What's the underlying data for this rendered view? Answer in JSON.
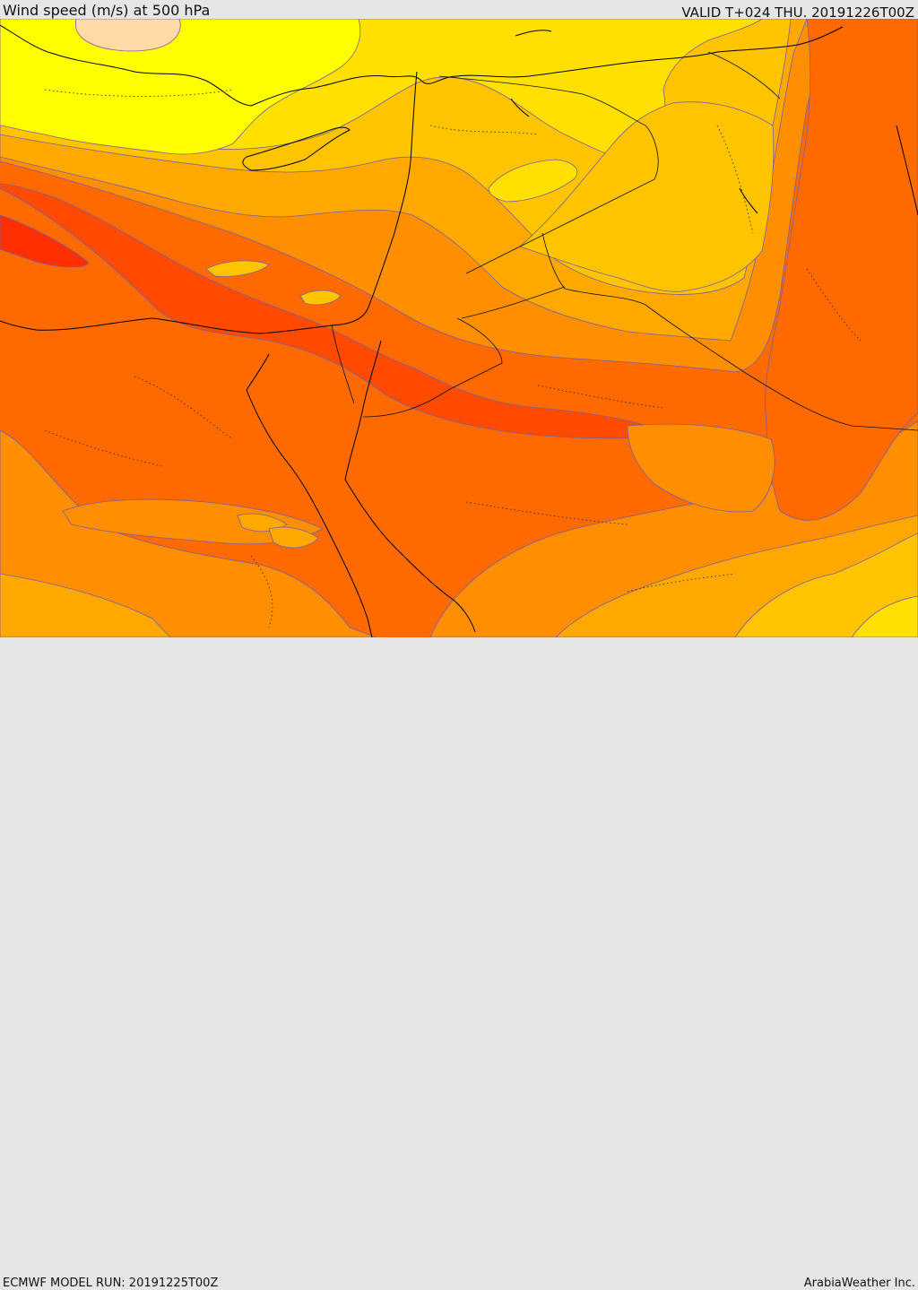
{
  "header": {
    "title": "Wind speed (m/s) at 500 hPa",
    "valid_time": "VALID T+024 THU. 20191226T00Z"
  },
  "footer": {
    "model_run": "ECMWF MODEL RUN: 20191225T00Z",
    "credit": "ArabiaWeather Inc."
  },
  "palette": {
    "lightest": "#ffd9a6",
    "yellow": "#ffff00",
    "yellow_gold": "#ffe000",
    "gold": "#ffc400",
    "light_orange": "#ffa800",
    "orange": "#ff8f00",
    "dark_orange": "#ff6a00",
    "red_orange": "#ff4a00",
    "red": "#ff2f00",
    "contour": "#7a5ea0",
    "coast": "#000000"
  }
}
